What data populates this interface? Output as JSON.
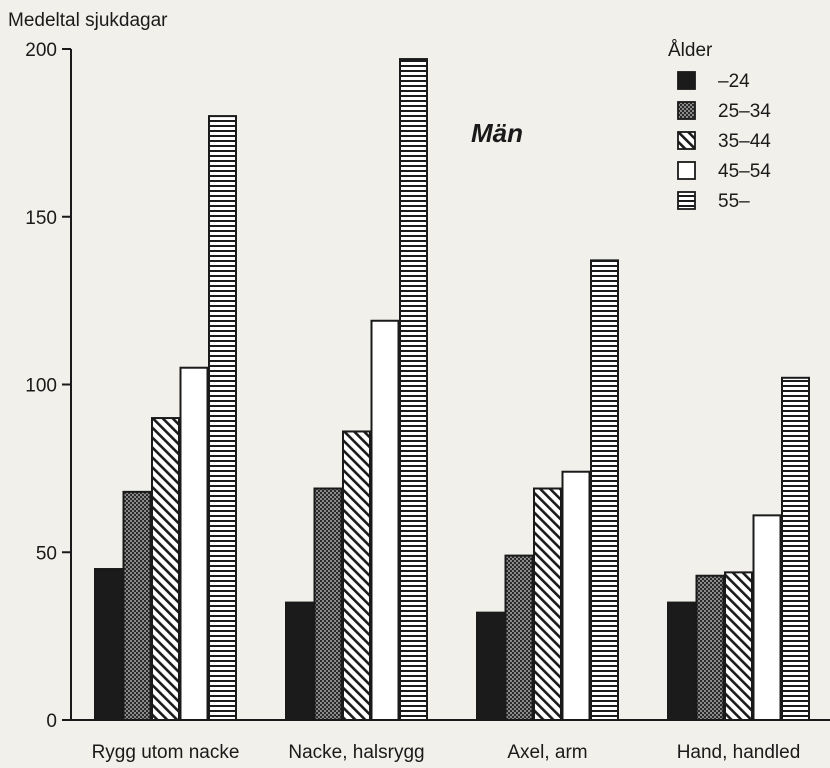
{
  "chart_data": {
    "type": "bar",
    "title": "Män",
    "ylabel": "Medeltal sjukdagar",
    "xlabel": "",
    "ylim": [
      0,
      200
    ],
    "yticks": [
      0,
      50,
      100,
      150,
      200
    ],
    "categories": [
      "Rygg utom nacke",
      "Nacke, halsrygg",
      "Axel, arm",
      "Hand, handled"
    ],
    "legend_title": "Ålder",
    "legend_position": "top-right",
    "grid": false,
    "series": [
      {
        "name": "–24",
        "pattern": "solid",
        "values": [
          45,
          35,
          32,
          35
        ]
      },
      {
        "name": "25–34",
        "pattern": "crosshatch",
        "values": [
          68,
          69,
          49,
          43
        ]
      },
      {
        "name": "35–44",
        "pattern": "diagonal",
        "values": [
          90,
          86,
          69,
          44
        ]
      },
      {
        "name": "45–54",
        "pattern": "white",
        "values": [
          105,
          119,
          74,
          61
        ]
      },
      {
        "name": "55–",
        "pattern": "horizontal",
        "values": [
          180,
          197,
          137,
          102
        ]
      }
    ]
  }
}
